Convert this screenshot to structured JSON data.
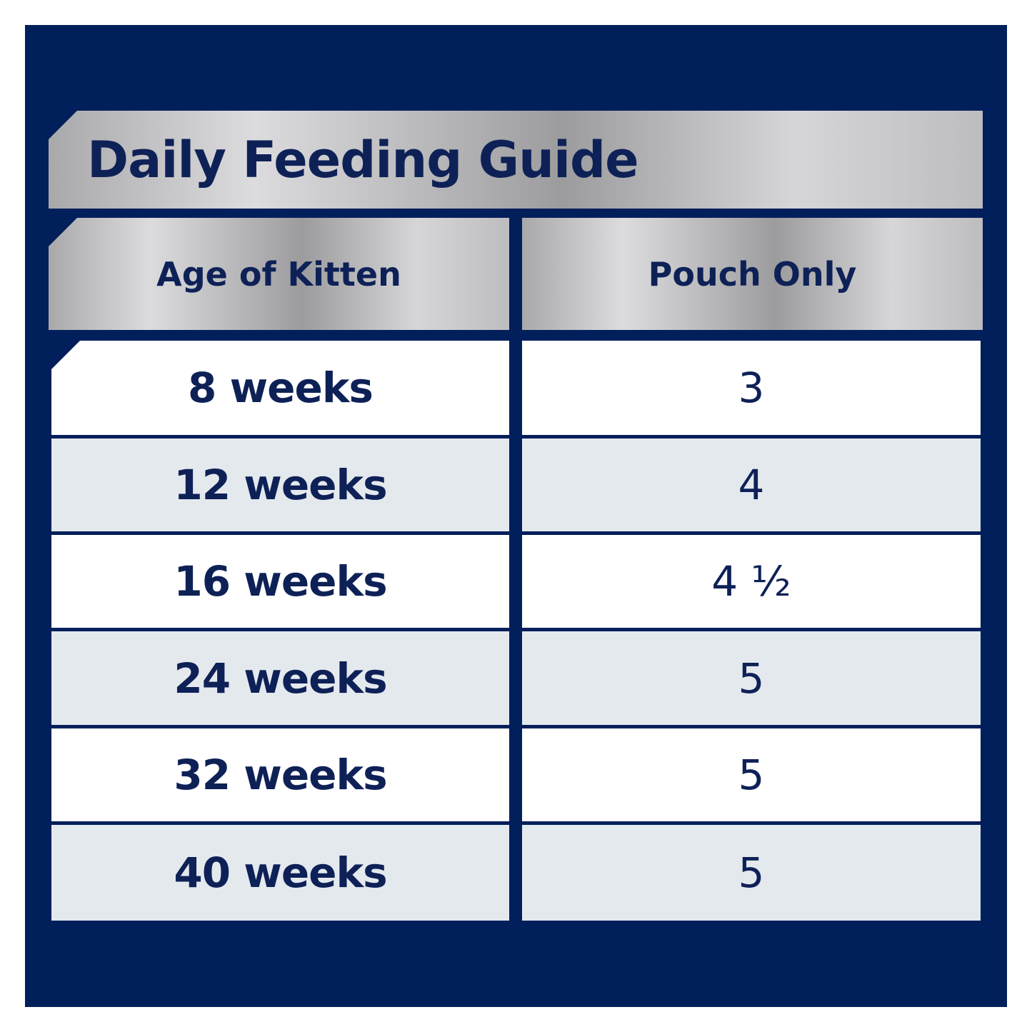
{
  "header": {
    "title": "Daily Feeding Guide"
  },
  "table": {
    "columns": [
      "Age of Kitten",
      "Pouch Only"
    ],
    "rows": [
      [
        "8 weeks",
        "3"
      ],
      [
        "12 weeks",
        "4"
      ],
      [
        "16 weeks",
        "4 ½"
      ],
      [
        "24 weeks",
        "5"
      ],
      [
        "32 weeks",
        "5"
      ],
      [
        "40 weeks",
        "5"
      ]
    ]
  }
}
